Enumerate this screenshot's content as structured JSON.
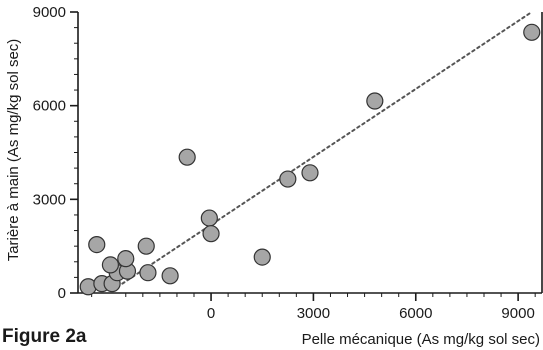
{
  "figure_caption": "Figure 2a",
  "chart_data": {
    "type": "scatter",
    "xlabel": "Pelle mécanique (As mg/kg sol sec)",
    "ylabel": "Tarière à main (As mg/kg sol sec)",
    "xlim": [
      -3900,
      9700
    ],
    "ylim": [
      0,
      9000
    ],
    "xticks": [
      0,
      3000,
      6000,
      9000
    ],
    "yticks": [
      0,
      3000,
      6000,
      9000
    ],
    "xtick_labels": [
      "0",
      "3000",
      "6000",
      "9000"
    ],
    "ytick_labels": [
      "0",
      "3000",
      "6000",
      "9000"
    ],
    "grid": false,
    "legend": "none",
    "point_color": "#a6a6a6",
    "point_edge_color": "#333333",
    "trendline": {
      "style": "dotted",
      "color": "#555555",
      "from": [
        -2600,
        300
      ],
      "to": [
        9400,
        9000
      ]
    },
    "points": [
      {
        "x": -3600,
        "y": 200
      },
      {
        "x": -3200,
        "y": 300
      },
      {
        "x": -2900,
        "y": 300
      },
      {
        "x": -2750,
        "y": 650
      },
      {
        "x": -2450,
        "y": 700
      },
      {
        "x": -2950,
        "y": 900
      },
      {
        "x": -2500,
        "y": 1100
      },
      {
        "x": -3350,
        "y": 1550
      },
      {
        "x": -1850,
        "y": 650
      },
      {
        "x": -1200,
        "y": 550
      },
      {
        "x": -1900,
        "y": 1500
      },
      {
        "x": -50,
        "y": 2400
      },
      {
        "x": 0,
        "y": 1900
      },
      {
        "x": -700,
        "y": 4350
      },
      {
        "x": 1500,
        "y": 1150
      },
      {
        "x": 2250,
        "y": 3650
      },
      {
        "x": 2900,
        "y": 3850
      },
      {
        "x": 4800,
        "y": 6150
      },
      {
        "x": 9400,
        "y": 8350
      }
    ]
  }
}
